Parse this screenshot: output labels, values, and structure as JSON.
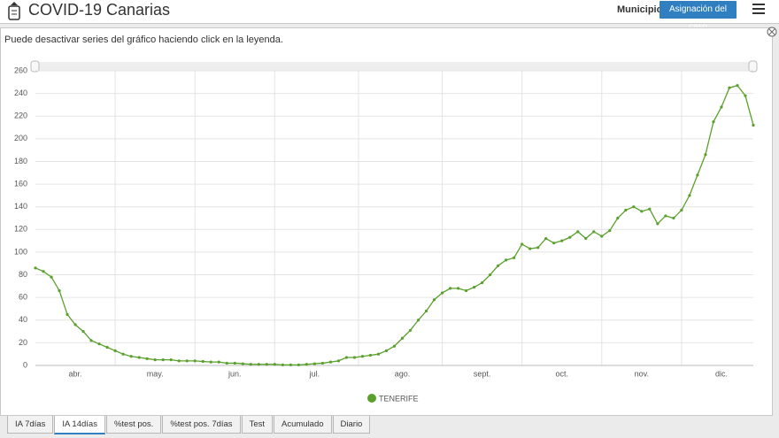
{
  "header": {
    "title": "COVID-19 Canarias",
    "filter_label": "Municipio",
    "button": "Asignación del caso"
  },
  "note": "Puede desactivar series del gráfico haciendo click en la leyenda.",
  "chart_data": {
    "type": "line",
    "categories": [
      null,
      null,
      null,
      null,
      null,
      "abr.",
      null,
      null,
      null,
      null,
      null,
      null,
      null,
      null,
      null,
      "may.",
      null,
      null,
      null,
      null,
      null,
      null,
      null,
      null,
      null,
      "jun.",
      null,
      null,
      null,
      null,
      null,
      null,
      null,
      null,
      null,
      "jul.",
      null,
      null,
      null,
      null,
      null,
      null,
      null,
      null,
      null,
      null,
      "ago.",
      null,
      null,
      null,
      null,
      null,
      null,
      null,
      null,
      null,
      "sept.",
      null,
      null,
      null,
      null,
      null,
      null,
      null,
      null,
      null,
      "oct.",
      null,
      null,
      null,
      null,
      null,
      null,
      null,
      null,
      null,
      "nov.",
      null,
      null,
      null,
      null,
      null,
      null,
      null,
      null,
      null,
      "dic.",
      null,
      null,
      null,
      null
    ],
    "series": [
      {
        "name": "TENERIFE",
        "color": "#5aa02c",
        "values": [
          86,
          83,
          78,
          66,
          45,
          36,
          30,
          22,
          19,
          16,
          13,
          10,
          8,
          7,
          6,
          5,
          5,
          5,
          4,
          4,
          4,
          3.5,
          3,
          3,
          2,
          2,
          1.5,
          1,
          1,
          1,
          1,
          0.5,
          0.5,
          0.5,
          1,
          1.5,
          2,
          3,
          4,
          7,
          7,
          8,
          9,
          10,
          13,
          17,
          24,
          31,
          40,
          48,
          58,
          64,
          68,
          68,
          66,
          69,
          73,
          80,
          88,
          93,
          95,
          107,
          103,
          104,
          112,
          108,
          110,
          113,
          118,
          112,
          118,
          114,
          119,
          130,
          137,
          140,
          136,
          138,
          125,
          132,
          130,
          137,
          150,
          168,
          186,
          215,
          228,
          245,
          247,
          238,
          212
        ]
      }
    ],
    "ylim": [
      0,
      260
    ],
    "yticks": [
      0,
      20,
      40,
      60,
      80,
      100,
      120,
      140,
      160,
      180,
      200,
      220,
      240,
      260
    ],
    "grid": true,
    "legend": "bottom"
  },
  "tabs": [
    "IA 7días",
    "IA 14días",
    "%test pos.",
    "%test pos. 7días",
    "Test",
    "Acumulado",
    "Diario"
  ],
  "active_tab": 1
}
